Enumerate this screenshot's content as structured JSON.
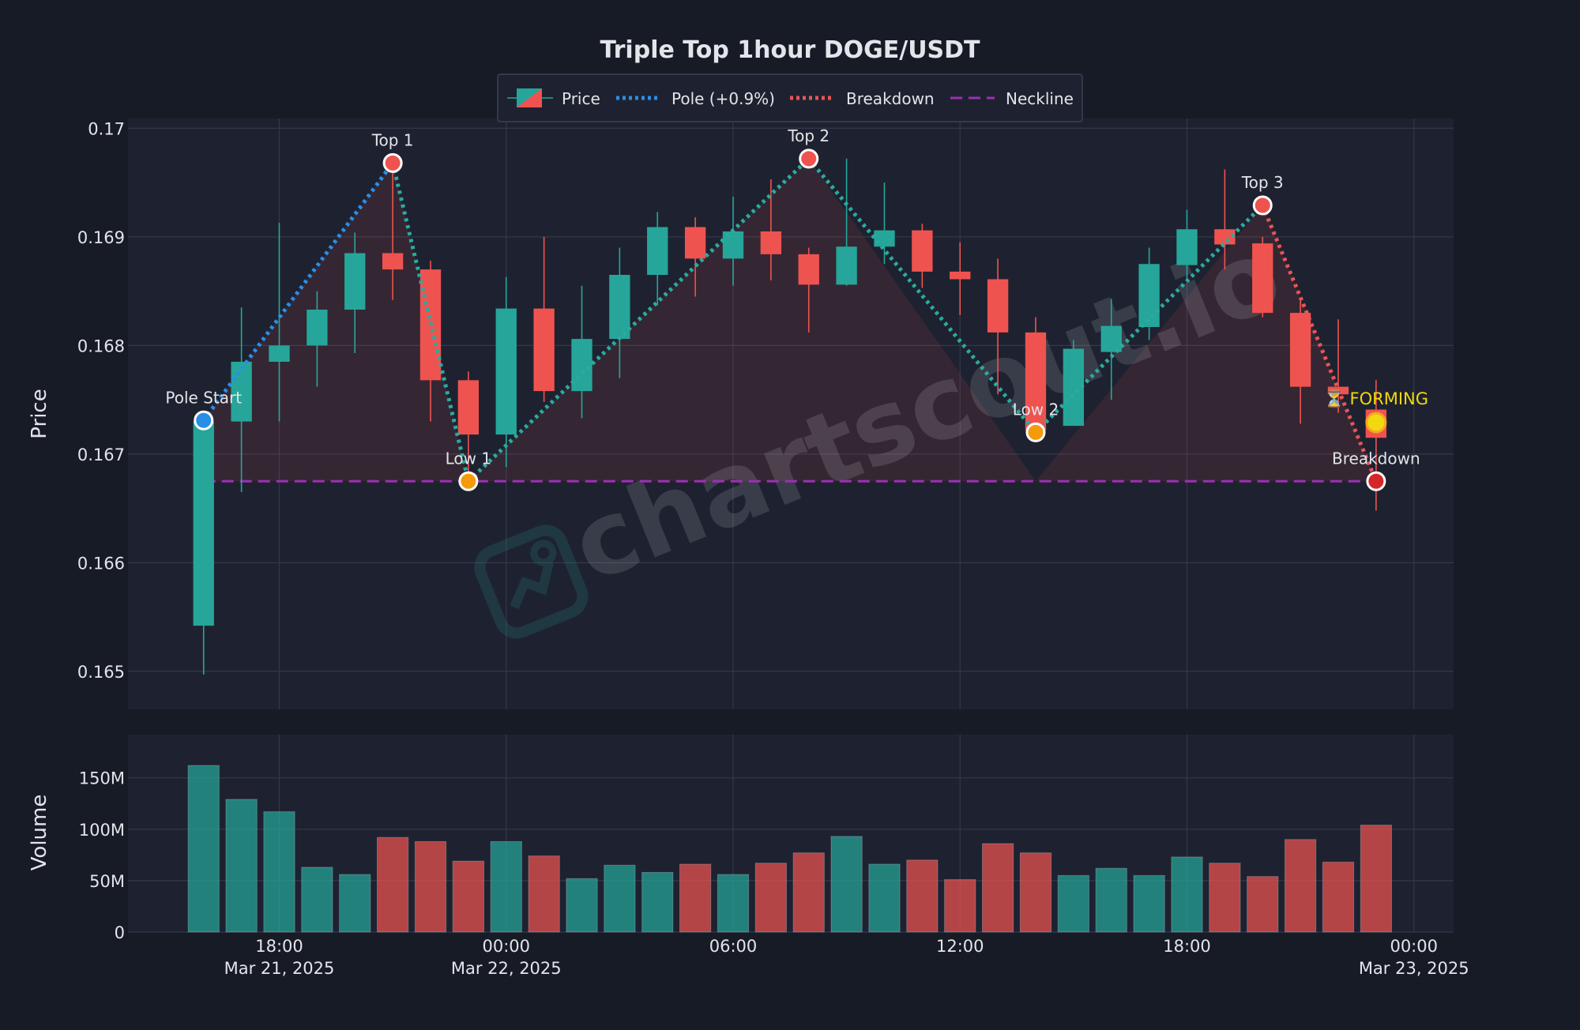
{
  "chart_data": {
    "type": "candlestick",
    "title": "Triple Top 1hour DOGE/USDT",
    "ylabel_price": "Price",
    "ylabel_volume": "Volume",
    "watermark": "chartscout.io",
    "price_ylim": [
      0.16465,
      0.17009
    ],
    "volume_ylim": [
      0,
      192
    ],
    "price_ticks": [
      "0.165",
      "0.166",
      "0.167",
      "0.168",
      "0.169",
      "0.17"
    ],
    "price_tick_values": [
      0.165,
      0.166,
      0.167,
      0.168,
      0.169,
      0.17
    ],
    "volume_ticks": [
      "0",
      "50M",
      "100M",
      "150M"
    ],
    "volume_tick_values": [
      0,
      50,
      100,
      150
    ],
    "x_ticks": [
      {
        "hour": 17,
        "line1": "18:00",
        "line2": "Mar 21, 2025"
      },
      {
        "hour": 23,
        "line1": "00:00",
        "line2": "Mar 22, 2025"
      },
      {
        "hour": 29,
        "line1": "06:00",
        "line2": ""
      },
      {
        "hour": 35,
        "line1": "12:00",
        "line2": ""
      },
      {
        "hour": 41,
        "line1": "18:00",
        "line2": ""
      },
      {
        "hour": 47,
        "line1": "00:00",
        "line2": "Mar 23, 2025"
      }
    ],
    "x_range_hours": [
      13,
      48.05
    ],
    "candle_start_hour": 15,
    "legend": [
      {
        "label": "Price",
        "kind": "candle"
      },
      {
        "label": "Pole (+0.9%)",
        "kind": "dotted",
        "color": "#2a8ee8"
      },
      {
        "label": "Breakdown",
        "kind": "dotted",
        "color": "#ea5455"
      },
      {
        "label": "Neckline",
        "kind": "dashed",
        "color": "#9b30b3"
      }
    ],
    "colors": {
      "up": "#26a69a",
      "down": "#ef5350",
      "pole": "#2a8ee8",
      "pattern": "#2aaba0",
      "breakdown": "#ea5455",
      "neckline": "#9b30b3",
      "forming": "#f2d80f"
    },
    "candles": [
      {
        "o": 0.16542,
        "h": 0.16733,
        "l": 0.16497,
        "c": 0.1673,
        "v": 162
      },
      {
        "o": 0.1673,
        "h": 0.16835,
        "l": 0.16665,
        "c": 0.16785,
        "v": 129
      },
      {
        "o": 0.16785,
        "h": 0.16913,
        "l": 0.1673,
        "c": 0.168,
        "v": 117
      },
      {
        "o": 0.168,
        "h": 0.1685,
        "l": 0.16762,
        "c": 0.16833,
        "v": 63
      },
      {
        "o": 0.16833,
        "h": 0.16904,
        "l": 0.16793,
        "c": 0.16885,
        "v": 56
      },
      {
        "o": 0.16885,
        "h": 0.1697,
        "l": 0.16842,
        "c": 0.1687,
        "v": 92
      },
      {
        "o": 0.1687,
        "h": 0.16878,
        "l": 0.1673,
        "c": 0.16768,
        "v": 88
      },
      {
        "o": 0.16768,
        "h": 0.16776,
        "l": 0.16674,
        "c": 0.16718,
        "v": 69
      },
      {
        "o": 0.16718,
        "h": 0.16863,
        "l": 0.16688,
        "c": 0.16834,
        "v": 88
      },
      {
        "o": 0.16834,
        "h": 0.169,
        "l": 0.16748,
        "c": 0.16758,
        "v": 74
      },
      {
        "o": 0.16758,
        "h": 0.16855,
        "l": 0.16733,
        "c": 0.16806,
        "v": 52
      },
      {
        "o": 0.16806,
        "h": 0.1689,
        "l": 0.1677,
        "c": 0.16865,
        "v": 65
      },
      {
        "o": 0.16865,
        "h": 0.16923,
        "l": 0.16837,
        "c": 0.16909,
        "v": 58
      },
      {
        "o": 0.16909,
        "h": 0.16918,
        "l": 0.16845,
        "c": 0.1688,
        "v": 66
      },
      {
        "o": 0.1688,
        "h": 0.16937,
        "l": 0.16855,
        "c": 0.16905,
        "v": 56
      },
      {
        "o": 0.16905,
        "h": 0.16953,
        "l": 0.1686,
        "c": 0.16884,
        "v": 67
      },
      {
        "o": 0.16884,
        "h": 0.1689,
        "l": 0.16812,
        "c": 0.16856,
        "v": 77
      },
      {
        "o": 0.16856,
        "h": 0.16972,
        "l": 0.16855,
        "c": 0.16891,
        "v": 93
      },
      {
        "o": 0.16891,
        "h": 0.1695,
        "l": 0.16875,
        "c": 0.16906,
        "v": 66
      },
      {
        "o": 0.16906,
        "h": 0.16912,
        "l": 0.16853,
        "c": 0.16868,
        "v": 70
      },
      {
        "o": 0.16868,
        "h": 0.16895,
        "l": 0.16828,
        "c": 0.16861,
        "v": 51
      },
      {
        "o": 0.16861,
        "h": 0.1688,
        "l": 0.16755,
        "c": 0.16812,
        "v": 86
      },
      {
        "o": 0.16812,
        "h": 0.16826,
        "l": 0.1672,
        "c": 0.16722,
        "v": 77
      },
      {
        "o": 0.16726,
        "h": 0.16805,
        "l": 0.16726,
        "c": 0.16797,
        "v": 55
      },
      {
        "o": 0.16794,
        "h": 0.16843,
        "l": 0.1675,
        "c": 0.16818,
        "v": 62
      },
      {
        "o": 0.16817,
        "h": 0.1689,
        "l": 0.16805,
        "c": 0.16875,
        "v": 55
      },
      {
        "o": 0.16874,
        "h": 0.16925,
        "l": 0.1686,
        "c": 0.16907,
        "v": 73
      },
      {
        "o": 0.16907,
        "h": 0.16962,
        "l": 0.1687,
        "c": 0.16893,
        "v": 67
      },
      {
        "o": 0.16894,
        "h": 0.169,
        "l": 0.16826,
        "c": 0.1683,
        "v": 54
      },
      {
        "o": 0.1683,
        "h": 0.16842,
        "l": 0.16728,
        "c": 0.16762,
        "v": 90
      },
      {
        "o": 0.16762,
        "h": 0.16824,
        "l": 0.16738,
        "c": 0.16755,
        "v": 68
      },
      {
        "o": 0.16741,
        "h": 0.16768,
        "l": 0.16648,
        "c": 0.16715,
        "v": 104
      }
    ],
    "pattern_points": [
      {
        "label": "Pole Start",
        "hour": 15,
        "price": 0.16731,
        "color": "#2a8ee8",
        "label_side": "above"
      },
      {
        "label": "Top 1",
        "hour": 20,
        "price": 0.16968,
        "color": "#ef5350",
        "label_side": "above"
      },
      {
        "label": "Low 1",
        "hour": 22,
        "price": 0.16675,
        "color": "#f59a0b",
        "label_side": "above"
      },
      {
        "label": "Top 2",
        "hour": 31,
        "price": 0.16972,
        "color": "#ef5350",
        "label_side": "above"
      },
      {
        "label": "Low 2",
        "hour": 37,
        "price": 0.1672,
        "color": "#f59a0b",
        "label_side": "above"
      },
      {
        "label": "Top 3",
        "hour": 43,
        "price": 0.16929,
        "color": "#ef5350",
        "label_side": "above"
      },
      {
        "label": "Breakdown",
        "hour": 46,
        "price": 0.16675,
        "color": "#d62728",
        "label_side": "above"
      }
    ],
    "forming": {
      "label": "⏳ FORMING",
      "hour": 46,
      "price": 0.16729
    },
    "neckline": {
      "hour_start": 15,
      "hour_end": 46,
      "price": 0.16675
    },
    "shaded_region": {
      "base": 0.16675,
      "points": [
        [
          15,
          0.16731
        ],
        [
          20,
          0.16968
        ],
        [
          22,
          0.16675
        ],
        [
          31,
          0.16972
        ],
        [
          37,
          0.16675
        ],
        [
          43,
          0.16929
        ],
        [
          46,
          0.16675
        ]
      ]
    }
  }
}
